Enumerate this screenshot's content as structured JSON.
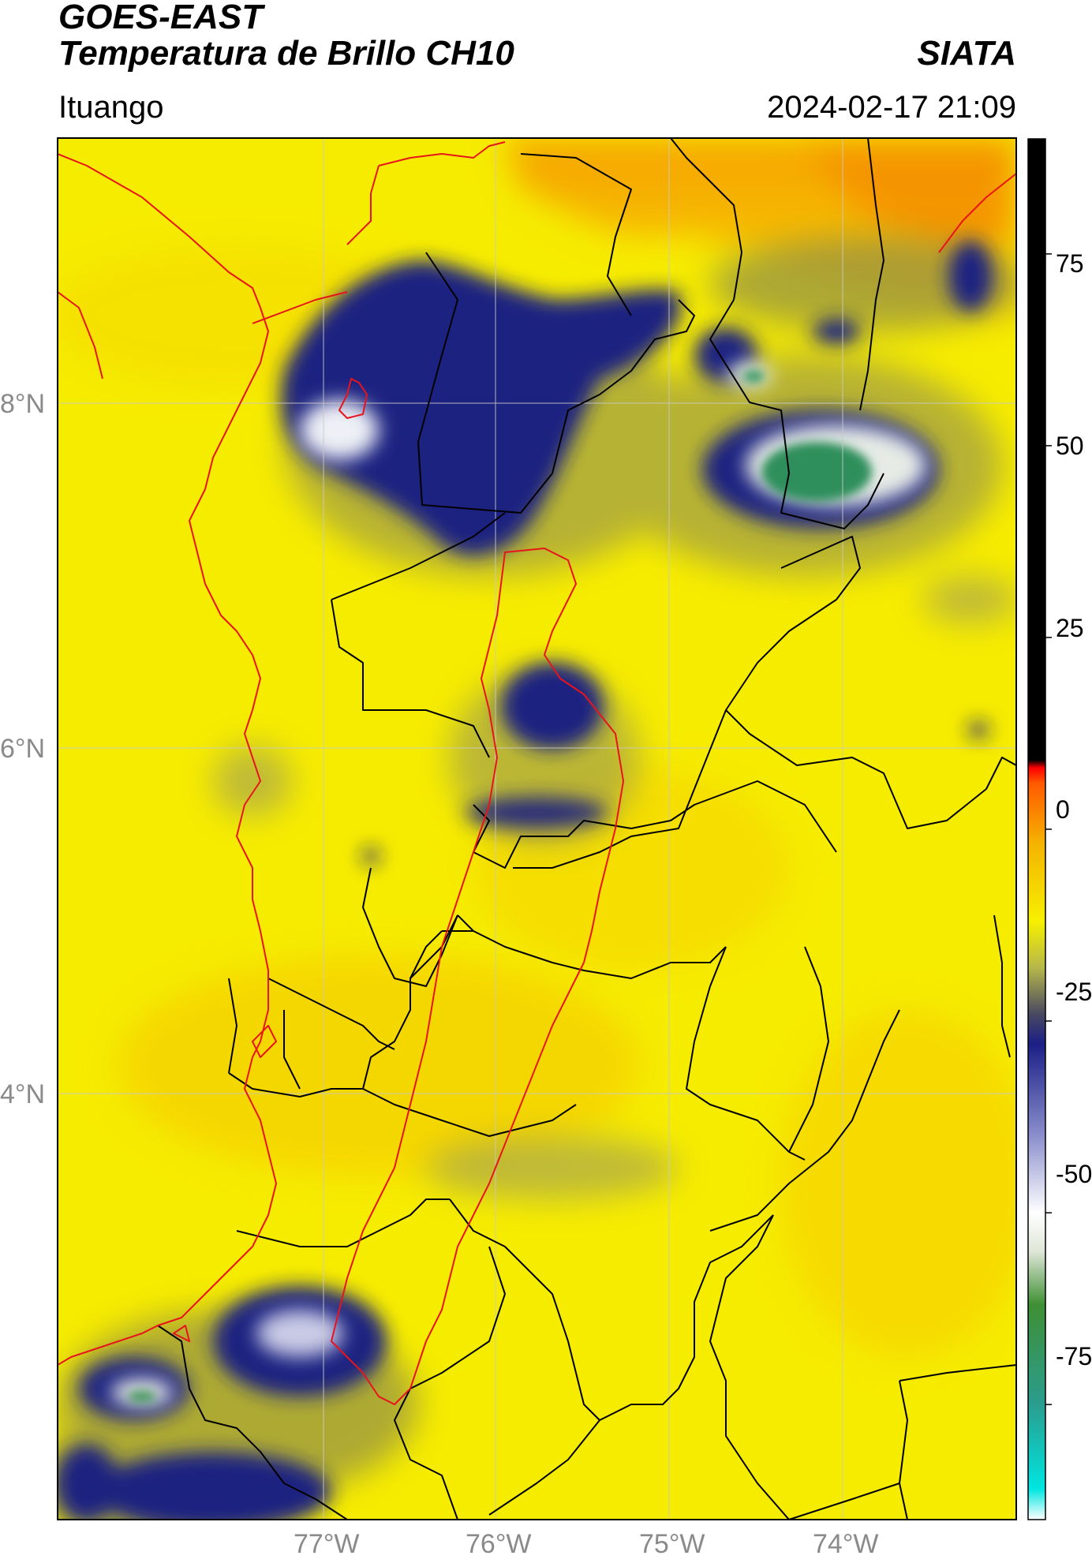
{
  "header": {
    "satellite": "GOES-EAST",
    "product": "Temperatura de Brillo CH10",
    "agency": "SIATA",
    "region": "Ituango",
    "datetime": "2024-02-17 21:09"
  },
  "map": {
    "lat_labels": [
      "8°N",
      "6°N",
      "4°N"
    ],
    "lon_labels": [
      "77°W",
      "76°W",
      "75°W",
      "74°W"
    ],
    "lat_values": [
      8,
      6,
      4
    ],
    "lon_values": [
      -77,
      -76,
      -75,
      -74
    ],
    "background_color": "#f6ec00"
  },
  "colorbar": {
    "ticks": [
      "75",
      "50",
      "25",
      "0",
      "-25",
      "-50",
      "-75"
    ],
    "tick_values": [
      75,
      50,
      25,
      0,
      -25,
      -50,
      -75
    ],
    "range": [
      -90,
      90
    ],
    "stops": [
      {
        "value": -90,
        "color": "#ffffff"
      },
      {
        "value": -86,
        "color": "#00e6e0"
      },
      {
        "value": -75,
        "color": "#2a9d8f"
      },
      {
        "value": -62,
        "color": "#3f8f34"
      },
      {
        "value": -55,
        "color": "#dfe7d8"
      },
      {
        "value": -50,
        "color": "#ffffff"
      },
      {
        "value": -40,
        "color": "#8b8fcc"
      },
      {
        "value": -28,
        "color": "#1b1f86"
      },
      {
        "value": -24,
        "color": "#4a4a60"
      },
      {
        "value": -18,
        "color": "#b7b84a"
      },
      {
        "value": -12,
        "color": "#f6f000"
      },
      {
        "value": -2,
        "color": "#f5b400"
      },
      {
        "value": 6,
        "color": "#ff5a00"
      },
      {
        "value": 8,
        "color": "#ff0000"
      },
      {
        "value": 9,
        "color": "#000000"
      },
      {
        "value": 90,
        "color": "#000000"
      }
    ]
  }
}
